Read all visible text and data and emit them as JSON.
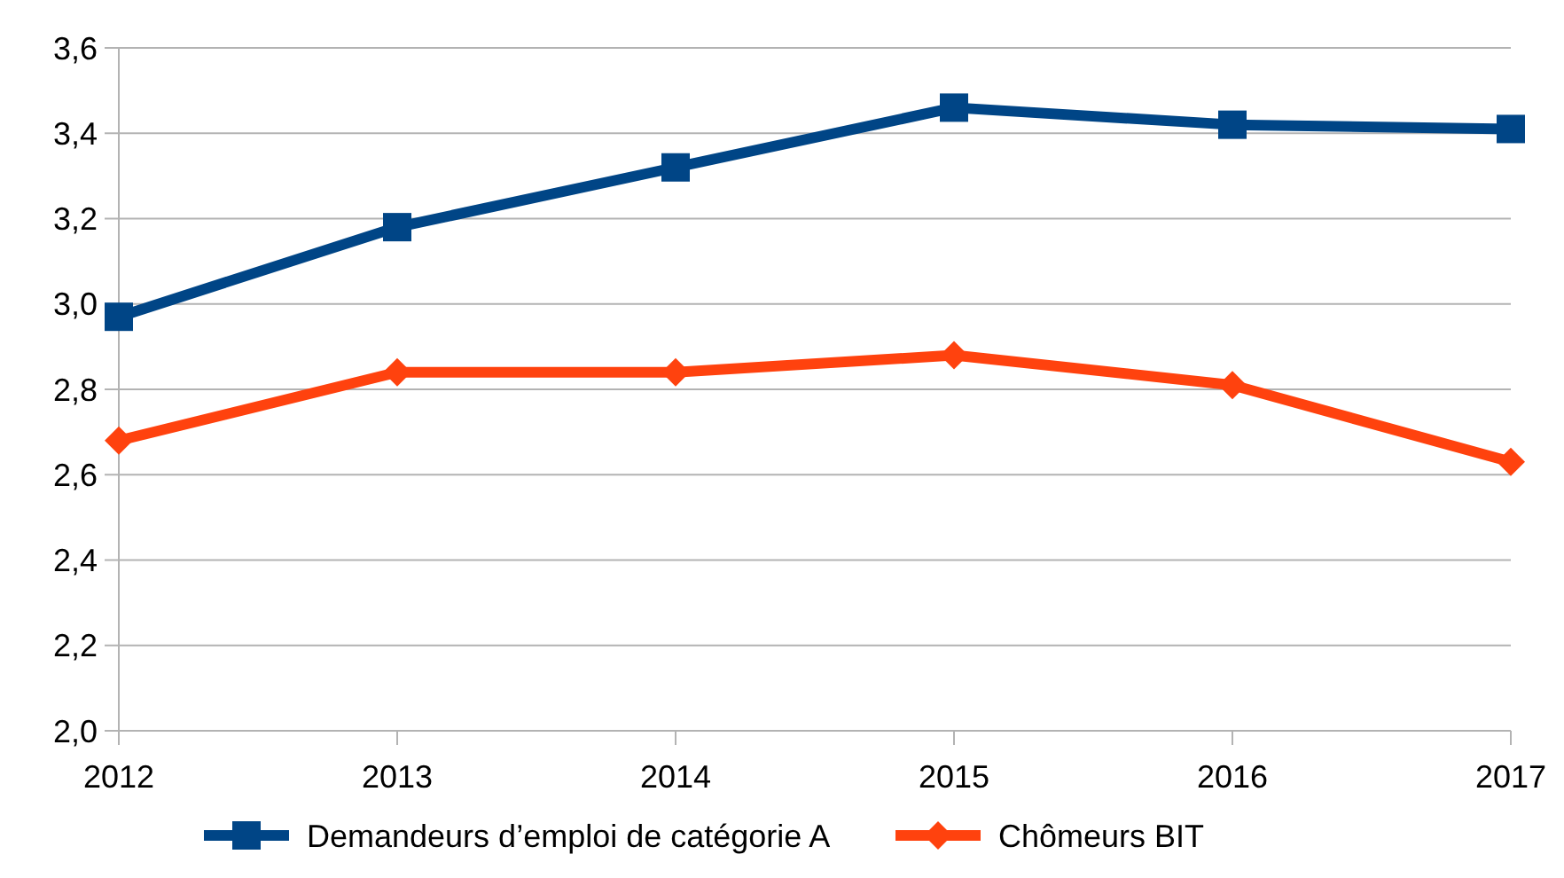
{
  "chart_data": {
    "type": "line",
    "x": [
      2012,
      2013,
      2014,
      2015,
      2016,
      2017
    ],
    "xlim": [
      2012,
      2017
    ],
    "xticks": [
      2012,
      2013,
      2014,
      2015,
      2016,
      2017
    ],
    "ylim": [
      2.0,
      3.6
    ],
    "yticks": [
      {
        "value": 2.0,
        "label": "2,0"
      },
      {
        "value": 2.2,
        "label": "2,2"
      },
      {
        "value": 2.4,
        "label": "2,4"
      },
      {
        "value": 2.6,
        "label": "2,6"
      },
      {
        "value": 2.8,
        "label": "2,8"
      },
      {
        "value": 3.0,
        "label": "3,0"
      },
      {
        "value": 3.2,
        "label": "3,2"
      },
      {
        "value": 3.4,
        "label": "3,4"
      },
      {
        "value": 3.6,
        "label": "3,6"
      }
    ],
    "grid": "y",
    "legend": "bottom",
    "line_style": "solid",
    "series": [
      {
        "name": "Demandeurs d’emploi de catégorie A",
        "color": "#004586",
        "marker": "square",
        "values": [
          2.97,
          3.18,
          3.32,
          3.46,
          3.42,
          3.41
        ]
      },
      {
        "name": "Chômeurs BIT",
        "color": "#ff420e",
        "marker": "diamond",
        "values": [
          2.68,
          2.84,
          2.84,
          2.88,
          2.81,
          2.63
        ]
      }
    ]
  }
}
